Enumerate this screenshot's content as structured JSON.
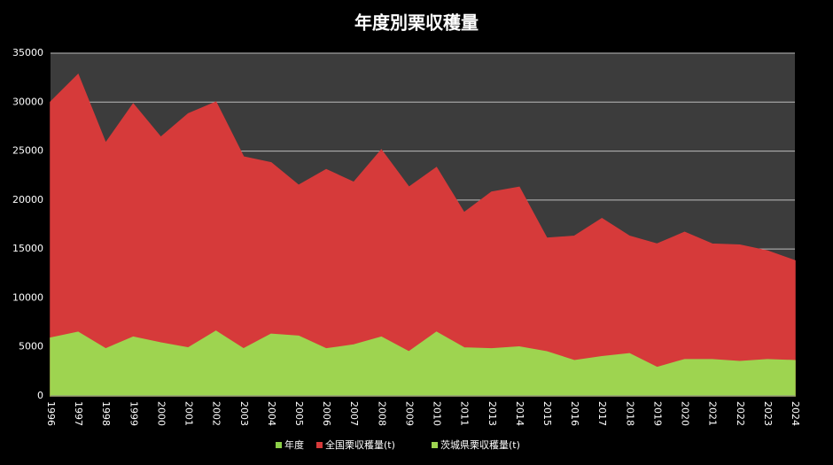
{
  "chart_data": {
    "type": "area",
    "title": "年度別栗収穫量",
    "categories": [
      "1996",
      "1997",
      "1998",
      "1999",
      "2000",
      "2001",
      "2002",
      "2003",
      "2004",
      "2005",
      "2006",
      "2007",
      "2008",
      "2009",
      "2010",
      "2011",
      "2013",
      "2014",
      "2015",
      "2016",
      "2017",
      "2018",
      "2019",
      "2020",
      "2021",
      "2022",
      "2023",
      "2024"
    ],
    "series": [
      {
        "name": "年度",
        "color": "#8ccf48",
        "values": [
          null,
          null,
          null,
          null,
          null,
          null,
          null,
          null,
          null,
          null,
          null,
          null,
          null,
          null,
          null,
          null,
          null,
          null,
          null,
          null,
          null,
          null,
          null,
          null,
          null,
          null,
          null,
          null
        ]
      },
      {
        "name": "全国栗収穫量(t)",
        "color": "#d63a3a",
        "values": [
          30000,
          32800,
          25800,
          29800,
          26400,
          28800,
          30000,
          24400,
          23800,
          21500,
          23100,
          21800,
          25100,
          21300,
          23300,
          18700,
          20800,
          21300,
          16100,
          16300,
          18100,
          16300,
          15500,
          16700,
          15500,
          15400,
          14800,
          13800
        ]
      },
      {
        "name": "茨城県栗収穫量(t)",
        "color": "#9ed450",
        "values": [
          5900,
          6500,
          4800,
          6000,
          5400,
          4900,
          6600,
          4800,
          6300,
          6100,
          4800,
          5200,
          6000,
          4500,
          6500,
          4900,
          4800,
          5000,
          4500,
          3600,
          4000,
          4300,
          2900,
          3700,
          3700,
          3500,
          3700,
          3600
        ]
      }
    ],
    "ylim": [
      0,
      35000
    ],
    "yticks": [
      0,
      5000,
      10000,
      15000,
      20000,
      25000,
      30000,
      35000
    ],
    "grid": true,
    "legend": "bottom"
  }
}
